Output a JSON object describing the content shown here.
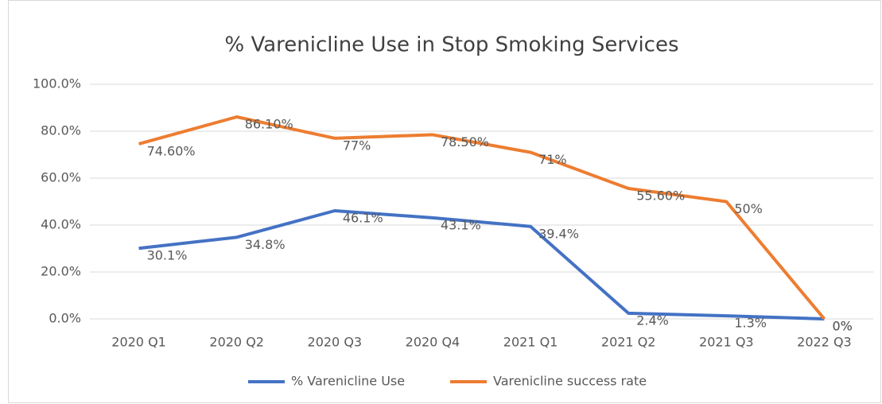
{
  "chart_data": {
    "type": "line",
    "title": "% Varenicline Use in Stop Smoking Services",
    "categories": [
      "2020 Q1",
      "2020 Q2",
      "2020 Q3",
      "2020 Q4",
      "2021 Q1",
      "2021 Q2",
      "2021 Q3",
      "2022 Q3"
    ],
    "series": [
      {
        "name": "% Varenicline Use",
        "color": "#4472c4",
        "values": [
          30.1,
          34.8,
          46.1,
          43.1,
          39.4,
          2.4,
          1.3,
          0
        ],
        "value_labels": [
          "30.1%",
          "34.8%",
          "46.1%",
          "43.1%",
          "39.4%",
          "2.4%",
          "1.3%",
          "0%"
        ]
      },
      {
        "name": "Varenicline success rate",
        "color": "#ed7d31",
        "values": [
          74.6,
          86.1,
          77,
          78.5,
          71,
          55.6,
          50,
          0
        ],
        "value_labels": [
          "74.60%",
          "86.10%",
          "77%",
          "78.50%",
          "71%",
          "55.60%",
          "50%",
          "0%"
        ]
      }
    ],
    "ylim": [
      0,
      100
    ],
    "yticks": [
      {
        "value": 0,
        "label": "0.0%"
      },
      {
        "value": 20,
        "label": "20.0%"
      },
      {
        "value": 40,
        "label": "40.0%"
      },
      {
        "value": 60,
        "label": "60.0%"
      },
      {
        "value": 80,
        "label": "80.0%"
      },
      {
        "value": 100,
        "label": "100.0%"
      }
    ],
    "grid": true,
    "legend": "bottom"
  }
}
